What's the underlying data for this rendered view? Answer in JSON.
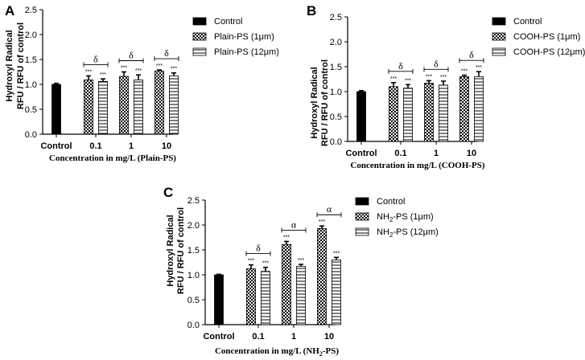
{
  "chart_data": [
    {
      "panel": "A",
      "type": "bar",
      "ylabel": [
        "Hydroxyl Radical",
        "RFU / RFU of control"
      ],
      "xlabel": "Concentration in mg/L (Plain-PS)",
      "ylim": [
        0,
        2.5
      ],
      "yticks": [
        "0.0",
        "0.5",
        "1.0",
        "1.5",
        "2.0",
        "2.5"
      ],
      "categories": [
        "Control",
        "0.1",
        "1",
        "10"
      ],
      "series": [
        {
          "name": "Control",
          "fill": "solid",
          "values": [
            1.0,
            null,
            null,
            null
          ],
          "errors": [
            0.02,
            null,
            null,
            null
          ]
        },
        {
          "name": "Plain-PS (1μm)",
          "fill": "check",
          "values": [
            null,
            1.09,
            1.16,
            1.27
          ],
          "errors": [
            null,
            0.08,
            0.09,
            0.02
          ]
        },
        {
          "name": "Plain-PS (12μm)",
          "fill": "hlines",
          "values": [
            null,
            1.06,
            1.09,
            1.17
          ],
          "errors": [
            null,
            0.05,
            0.1,
            0.06
          ]
        }
      ],
      "significance": [
        "***",
        "***",
        "***",
        "***",
        "***",
        "***"
      ],
      "brackets": [
        "δ",
        "δ",
        "δ"
      ]
    },
    {
      "panel": "B",
      "type": "bar",
      "ylabel": [
        "Hydroxyl Radical",
        "RFU / RFU of control"
      ],
      "xlabel": "Concentration in mg/L (COOH-PS)",
      "ylim": [
        0,
        2.5
      ],
      "yticks": [
        "0.0",
        "0.5",
        "1.0",
        "1.5",
        "2.0",
        "2.5"
      ],
      "categories": [
        "Control",
        "0.1",
        "1",
        "10"
      ],
      "series": [
        {
          "name": "Control",
          "fill": "solid",
          "values": [
            1.0,
            null,
            null,
            null
          ],
          "errors": [
            0.02,
            null,
            null,
            null
          ]
        },
        {
          "name": "COOH-PS (1μm)",
          "fill": "check",
          "values": [
            null,
            1.1,
            1.17,
            1.3
          ],
          "errors": [
            null,
            0.08,
            0.05,
            0.03
          ]
        },
        {
          "name": "COOH-PS (12μm)",
          "fill": "hlines",
          "values": [
            null,
            1.07,
            1.13,
            1.3
          ],
          "errors": [
            null,
            0.07,
            0.08,
            0.1
          ]
        }
      ],
      "significance": [
        "***",
        "***",
        "***",
        "***",
        "***",
        "***"
      ],
      "brackets": [
        "δ",
        "δ",
        "δ"
      ]
    },
    {
      "panel": "C",
      "type": "bar",
      "ylabel": [
        "Hydroxyl Radical",
        "RFU / RFU of control"
      ],
      "xlabel_parts": [
        "Concentration in mg/L (NH",
        "2",
        "-PS)"
      ],
      "ylim": [
        0,
        2.5
      ],
      "yticks": [
        "0.0",
        "0.5",
        "1.0",
        "1.5",
        "2.0",
        "2.5"
      ],
      "categories": [
        "Control",
        "0.1",
        "1",
        "10"
      ],
      "series": [
        {
          "name": "Control",
          "name_parts": [
            "Control"
          ],
          "fill": "solid",
          "values": [
            1.0,
            null,
            null,
            null
          ],
          "errors": [
            0.01,
            null,
            null,
            null
          ]
        },
        {
          "name": "NH2-PS (1μm)",
          "name_parts": [
            "NH",
            "2",
            "-PS (1μm)"
          ],
          "fill": "check",
          "values": [
            null,
            1.12,
            1.61,
            1.93
          ],
          "errors": [
            null,
            0.08,
            0.06,
            0.05
          ]
        },
        {
          "name": "NH2-PS (12μm)",
          "name_parts": [
            "NH",
            "2",
            "-PS (12μm)"
          ],
          "fill": "hlines",
          "values": [
            null,
            1.07,
            1.17,
            1.3
          ],
          "errors": [
            null,
            0.08,
            0.04,
            0.05
          ]
        }
      ],
      "significance": [
        "***",
        "***",
        "***",
        "***",
        "***",
        "***"
      ],
      "brackets": [
        "δ",
        "α",
        "α"
      ]
    }
  ]
}
